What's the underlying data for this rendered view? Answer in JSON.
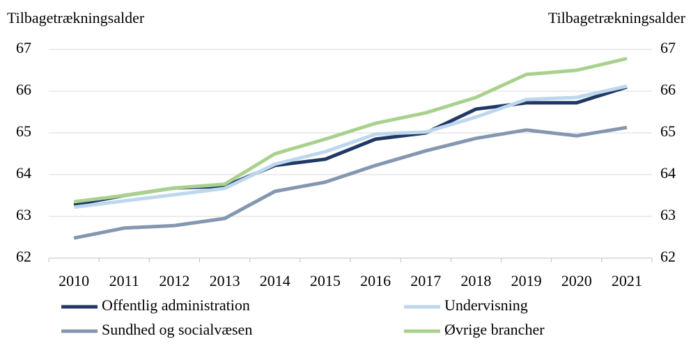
{
  "chart_data": {
    "type": "line",
    "y_label": "Tilbagetrækningsalder",
    "y2_label": "Tilbagetrækningsalder",
    "categories": [
      "2010",
      "2011",
      "2012",
      "2013",
      "2014",
      "2015",
      "2016",
      "2017",
      "2018",
      "2019",
      "2020",
      "2021"
    ],
    "series": [
      {
        "name": "Offentlig administration",
        "color": "#203864",
        "values": [
          63.28,
          63.5,
          63.68,
          63.72,
          64.22,
          64.37,
          64.85,
          65.0,
          65.57,
          65.72,
          65.72,
          66.1
        ]
      },
      {
        "name": "Undervisning",
        "color": "#bdd7ee",
        "values": [
          63.22,
          63.37,
          63.52,
          63.67,
          64.25,
          64.55,
          64.97,
          65.02,
          65.38,
          65.8,
          65.85,
          66.12
        ]
      },
      {
        "name": "Sundhed og socialvæsen",
        "color": "#8497b0",
        "values": [
          62.48,
          62.72,
          62.78,
          62.95,
          63.6,
          63.82,
          64.22,
          64.57,
          64.87,
          65.07,
          64.93,
          65.13
        ]
      },
      {
        "name": "Øvrige brancher",
        "color": "#a9d18e",
        "values": [
          63.35,
          63.5,
          63.68,
          63.77,
          64.5,
          64.85,
          65.23,
          65.48,
          65.85,
          66.4,
          66.5,
          66.78
        ]
      }
    ],
    "ylim": [
      62,
      67
    ],
    "yticks": [
      62,
      63,
      64,
      65,
      66,
      67
    ],
    "y2lim": [
      62,
      67
    ],
    "y2ticks": [
      62,
      63,
      64,
      65,
      66,
      67
    ],
    "grid": true
  }
}
